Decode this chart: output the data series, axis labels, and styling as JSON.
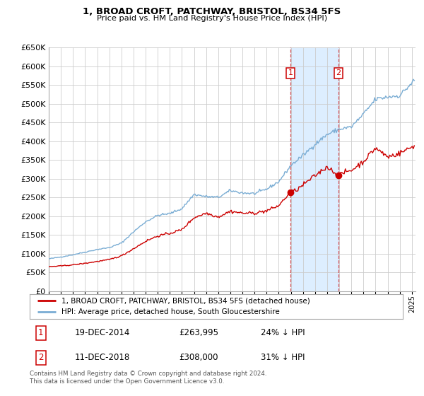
{
  "title": "1, BROAD CROFT, PATCHWAY, BRISTOL, BS34 5FS",
  "subtitle": "Price paid vs. HM Land Registry's House Price Index (HPI)",
  "legend_line1": "1, BROAD CROFT, PATCHWAY, BRISTOL, BS34 5FS (detached house)",
  "legend_line2": "HPI: Average price, detached house, South Gloucestershire",
  "sale1_date": "19-DEC-2014",
  "sale1_price": "£263,995",
  "sale1_pct": "24% ↓ HPI",
  "sale1_x": 2014.96,
  "sale1_y": 263995,
  "sale2_date": "11-DEC-2018",
  "sale2_price": "£308,000",
  "sale2_pct": "31% ↓ HPI",
  "sale2_x": 2018.94,
  "sale2_y": 308000,
  "footnote": "Contains HM Land Registry data © Crown copyright and database right 2024.\nThis data is licensed under the Open Government Licence v3.0.",
  "hpi_color": "#7aadd4",
  "price_color": "#cc0000",
  "bg_color": "#ffffff",
  "grid_color": "#cccccc",
  "shaded_color": "#ddeeff",
  "ylim": [
    0,
    650000
  ],
  "yticks": [
    0,
    50000,
    100000,
    150000,
    200000,
    250000,
    300000,
    350000,
    400000,
    450000,
    500000,
    550000,
    600000,
    650000
  ],
  "xlim_left": 1995.0,
  "xlim_right": 2025.3
}
